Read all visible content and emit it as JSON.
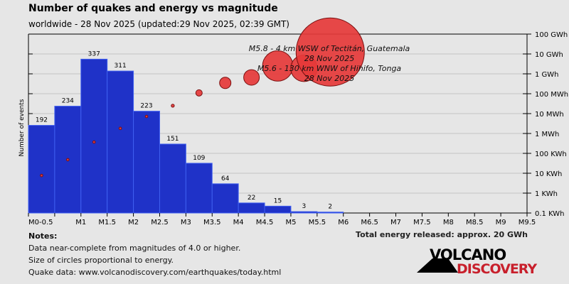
{
  "header": {
    "title": "Number of quakes and energy vs magnitude",
    "subtitle": "worldwide - 28 Nov 2025 (updated:29 Nov 2025, 02:39 GMT)"
  },
  "chart_data": {
    "type": "bar",
    "title": "Number of quakes and energy vs magnitude",
    "ylabel": "Number of events",
    "x_tick_labels": [
      "M0-0.5",
      "",
      "M1",
      "M1.5",
      "M2",
      "M2.5",
      "M3",
      "M3.5",
      "M4",
      "M4.5",
      "M5",
      "M5.5",
      "M6",
      "M6.5",
      "M7",
      "M7.5",
      "M8",
      "M8.5",
      "M9",
      "M9.5"
    ],
    "bins": [
      "0-0.5",
      "0.5-1",
      "1-1.5",
      "1.5-2",
      "2-2.5",
      "2.5-3",
      "3-3.5",
      "3.5-4",
      "4-4.5",
      "4.5-5",
      "5-5.5",
      "5.5-6"
    ],
    "counts": [
      192,
      234,
      337,
      311,
      223,
      151,
      109,
      64,
      22,
      15,
      3,
      2
    ],
    "count_ylim": [
      0,
      392
    ],
    "energy_series": {
      "name": "Energy released (kWh)",
      "unit": "kWh",
      "values": [
        7.7,
        48,
        370,
        1800,
        7200,
        25000,
        110000,
        350000,
        660000,
        2500000,
        1900000,
        12600000
      ]
    },
    "energy_axis_labels": [
      "0.1 KWh",
      "1 KWh",
      "10 KWh",
      "100 KWh",
      "1 MWh",
      "10 MWh",
      "100 MWh",
      "1 GWh",
      "10 GWh",
      "100 GWh"
    ],
    "energy_ylim_kwh": [
      0.1,
      100000000
    ],
    "annotations": [
      "M5.8 - 4 km WSW of Tectitán, Guatemala",
      "28 Nov 2025",
      "M5.6 - 130 km WNW of Hihifo, Tonga",
      "28 Nov 2025"
    ],
    "grid": true
  },
  "colors": {
    "bar": "#1f32c8",
    "bar_edge": "#3f5ff0",
    "bubble": "#e63a3a",
    "bubble_edge": "#7a1010",
    "logo_red": "#c8202c"
  },
  "notes": {
    "heading": "Notes:",
    "lines": [
      "Data near-complete from magnitudes of 4.0 or higher.",
      "Size of circles proportional to energy.",
      "Quake data: www.volcanodiscovery.com/earthquakes/today.html"
    ]
  },
  "total": "Total energy released: approx. 20 GWh",
  "logo": {
    "line1": "VOLCANO",
    "line2": "DISCOVERY"
  }
}
